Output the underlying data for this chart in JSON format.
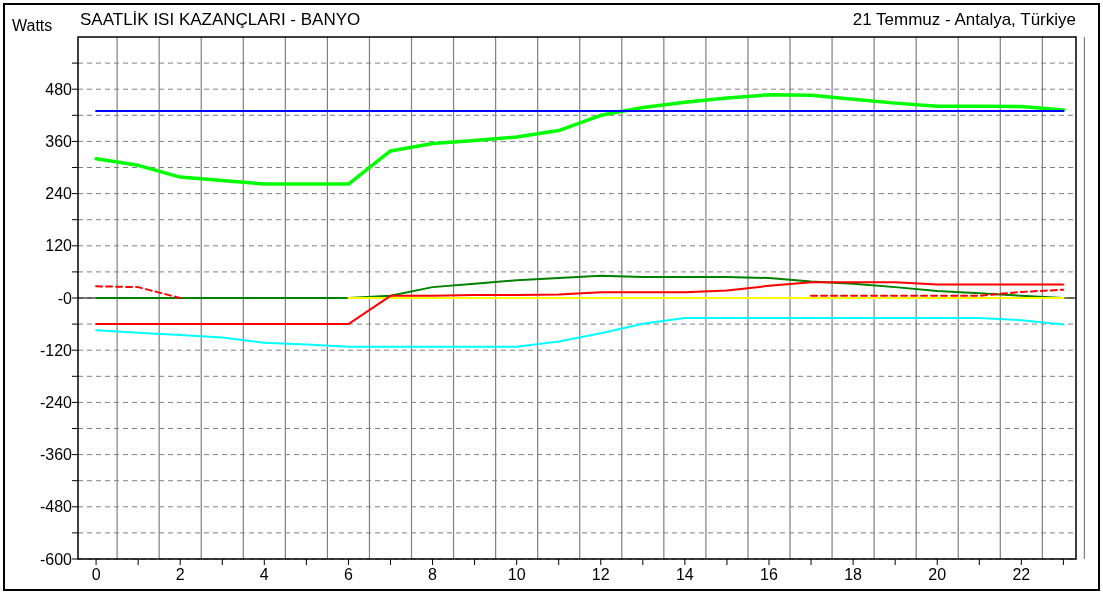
{
  "chart_data": {
    "type": "line",
    "title": "SAATLİK ISI KAZANÇLARI - BANYO",
    "subtitle": "21 Temmuz - Antalya, Türkiye",
    "ylabel": "Watts",
    "x": [
      0,
      1,
      2,
      3,
      4,
      5,
      6,
      7,
      8,
      9,
      10,
      11,
      12,
      13,
      14,
      15,
      16,
      17,
      18,
      19,
      20,
      21,
      22,
      23
    ],
    "series": [
      {
        "color": "#00ff00",
        "values": [
          320,
          305,
          278,
          270,
          262,
          262,
          262,
          338,
          355,
          362,
          370,
          385,
          420,
          438,
          450,
          460,
          467,
          466,
          457,
          448,
          441,
          441,
          440,
          432
        ]
      },
      {
        "color": "#0000ff",
        "values": [
          430,
          430,
          430,
          430,
          430,
          430,
          430,
          430,
          430,
          430,
          430,
          430,
          430,
          430,
          430,
          430,
          430,
          430,
          430,
          430,
          430,
          430,
          430,
          430
        ]
      },
      {
        "color": "#008000",
        "values": [
          0,
          0,
          0,
          0,
          0,
          0,
          0,
          5,
          25,
          33,
          41,
          46,
          51,
          48,
          48,
          48,
          46,
          38,
          33,
          25,
          16,
          11,
          5,
          0
        ]
      },
      {
        "color": "#ffff00",
        "values": [
          null,
          null,
          null,
          null,
          null,
          null,
          0,
          0,
          0,
          0,
          0,
          0,
          0,
          0,
          0,
          0,
          0,
          0,
          0,
          0,
          0,
          0,
          0,
          0
        ]
      },
      {
        "color": "#ff0000",
        "values": [
          -60,
          -60,
          -60,
          -60,
          -60,
          -60,
          -60,
          5,
          5,
          7,
          7,
          8,
          13,
          13,
          13,
          17,
          28,
          36,
          36,
          36,
          31,
          31,
          31,
          31
        ]
      },
      {
        "color": "#ff0000",
        "line_style": "dashed",
        "values": [
          27,
          25,
          0,
          null,
          null,
          null,
          null,
          null,
          null,
          null,
          null,
          null,
          null,
          null,
          null,
          null,
          null,
          5,
          5,
          5,
          5,
          5,
          14,
          19
        ]
      },
      {
        "color": "#00ffff",
        "values": [
          -74,
          -80,
          -85,
          -91,
          -103,
          -107,
          -112,
          -112,
          -112,
          -112,
          -112,
          -100,
          -81,
          -59,
          -46,
          -46,
          -46,
          -46,
          -46,
          -46,
          -46,
          -46,
          -51,
          -61
        ]
      }
    ],
    "xlim": [
      -0.43,
      23.3
    ],
    "xticks": [
      0,
      {
        "value": 1,
        "label": null
      },
      2,
      {
        "value": 3,
        "label": null
      },
      4,
      {
        "value": 5,
        "label": null
      },
      6,
      {
        "value": 7,
        "label": null
      },
      8,
      {
        "value": 9,
        "label": null
      },
      10,
      {
        "value": 11,
        "label": null
      },
      12,
      {
        "value": 13,
        "label": null
      },
      14,
      {
        "value": 15,
        "label": null
      },
      16,
      {
        "value": 17,
        "label": null
      },
      18,
      {
        "value": 19,
        "label": null
      },
      20,
      {
        "value": 21,
        "label": null
      },
      22,
      {
        "value": 23,
        "label": null
      }
    ],
    "ylim": [
      -600,
      600
    ],
    "yticks": [
      -600,
      {
        "value": -540,
        "label": null
      },
      -480,
      {
        "value": -420,
        "label": null
      },
      -360,
      {
        "value": -300,
        "label": null
      },
      -240,
      {
        "value": -180,
        "label": null
      },
      -120,
      {
        "value": -60,
        "label": null
      },
      {
        "value": 0,
        "label": "-0"
      },
      {
        "value": 60,
        "label": null
      },
      120,
      {
        "value": 180,
        "label": null
      },
      240,
      {
        "value": 300,
        "label": null
      },
      360,
      {
        "value": 420,
        "label": null
      },
      480,
      {
        "value": 540,
        "label": null
      }
    ],
    "ref_lines": [
      {
        "axis": "y",
        "value": 0,
        "color": "#000000"
      }
    ],
    "grid": true,
    "line_style": "solid",
    "marker": "none"
  }
}
